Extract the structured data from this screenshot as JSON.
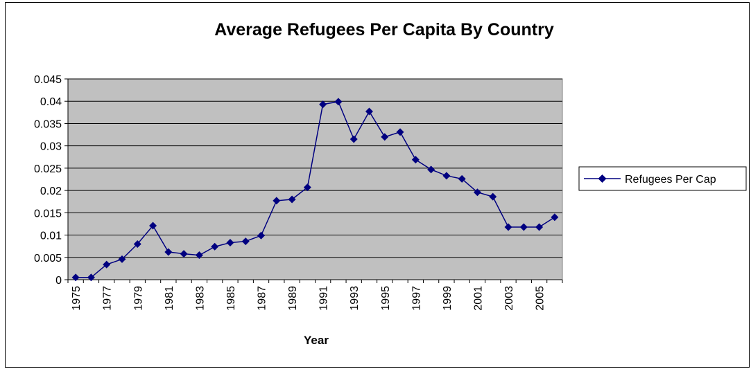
{
  "colors": {
    "plot_background": "#c0c0c0",
    "series": "#000080",
    "gridline": "#000000",
    "axis": "#000000"
  },
  "chart_data": {
    "type": "line",
    "title": "Average Refugees Per Capita By Country",
    "xlabel": "Year",
    "ylabel": "",
    "categories": [
      "1975",
      "1976",
      "1977",
      "1978",
      "1979",
      "1980",
      "1981",
      "1982",
      "1983",
      "1984",
      "1985",
      "1986",
      "1987",
      "1988",
      "1989",
      "1990",
      "1991",
      "1992",
      "1993",
      "1994",
      "1995",
      "1996",
      "1997",
      "1998",
      "1999",
      "2000",
      "2001",
      "2002",
      "2003",
      "2004",
      "2005",
      "2006"
    ],
    "x_tick_labels": [
      "1975",
      "",
      "1977",
      "",
      "1979",
      "",
      "1981",
      "",
      "1983",
      "",
      "1985",
      "",
      "1987",
      "",
      "1989",
      "",
      "1991",
      "",
      "1993",
      "",
      "1995",
      "",
      "1997",
      "",
      "1999",
      "",
      "2001",
      "",
      "2003",
      "",
      "2005",
      ""
    ],
    "y_ticks": [
      "0",
      "0.005",
      "0.01",
      "0.015",
      "0.02",
      "0.025",
      "0.03",
      "0.035",
      "0.04",
      "0.045"
    ],
    "ylim": [
      0,
      0.045
    ],
    "grid": "horizontal",
    "legend_position": "right",
    "marker": "diamond",
    "series": [
      {
        "name": "Refugees Per Cap",
        "values": [
          0.0005,
          0.0005,
          0.0034,
          0.0046,
          0.008,
          0.0121,
          0.0062,
          0.0058,
          0.0055,
          0.0074,
          0.0083,
          0.0086,
          0.0099,
          0.0177,
          0.018,
          0.0207,
          0.0393,
          0.0399,
          0.0315,
          0.0377,
          0.032,
          0.0331,
          0.0269,
          0.0247,
          0.0233,
          0.0226,
          0.0196,
          0.0186,
          0.0118,
          0.0118,
          0.0118,
          0.014
        ]
      }
    ]
  }
}
